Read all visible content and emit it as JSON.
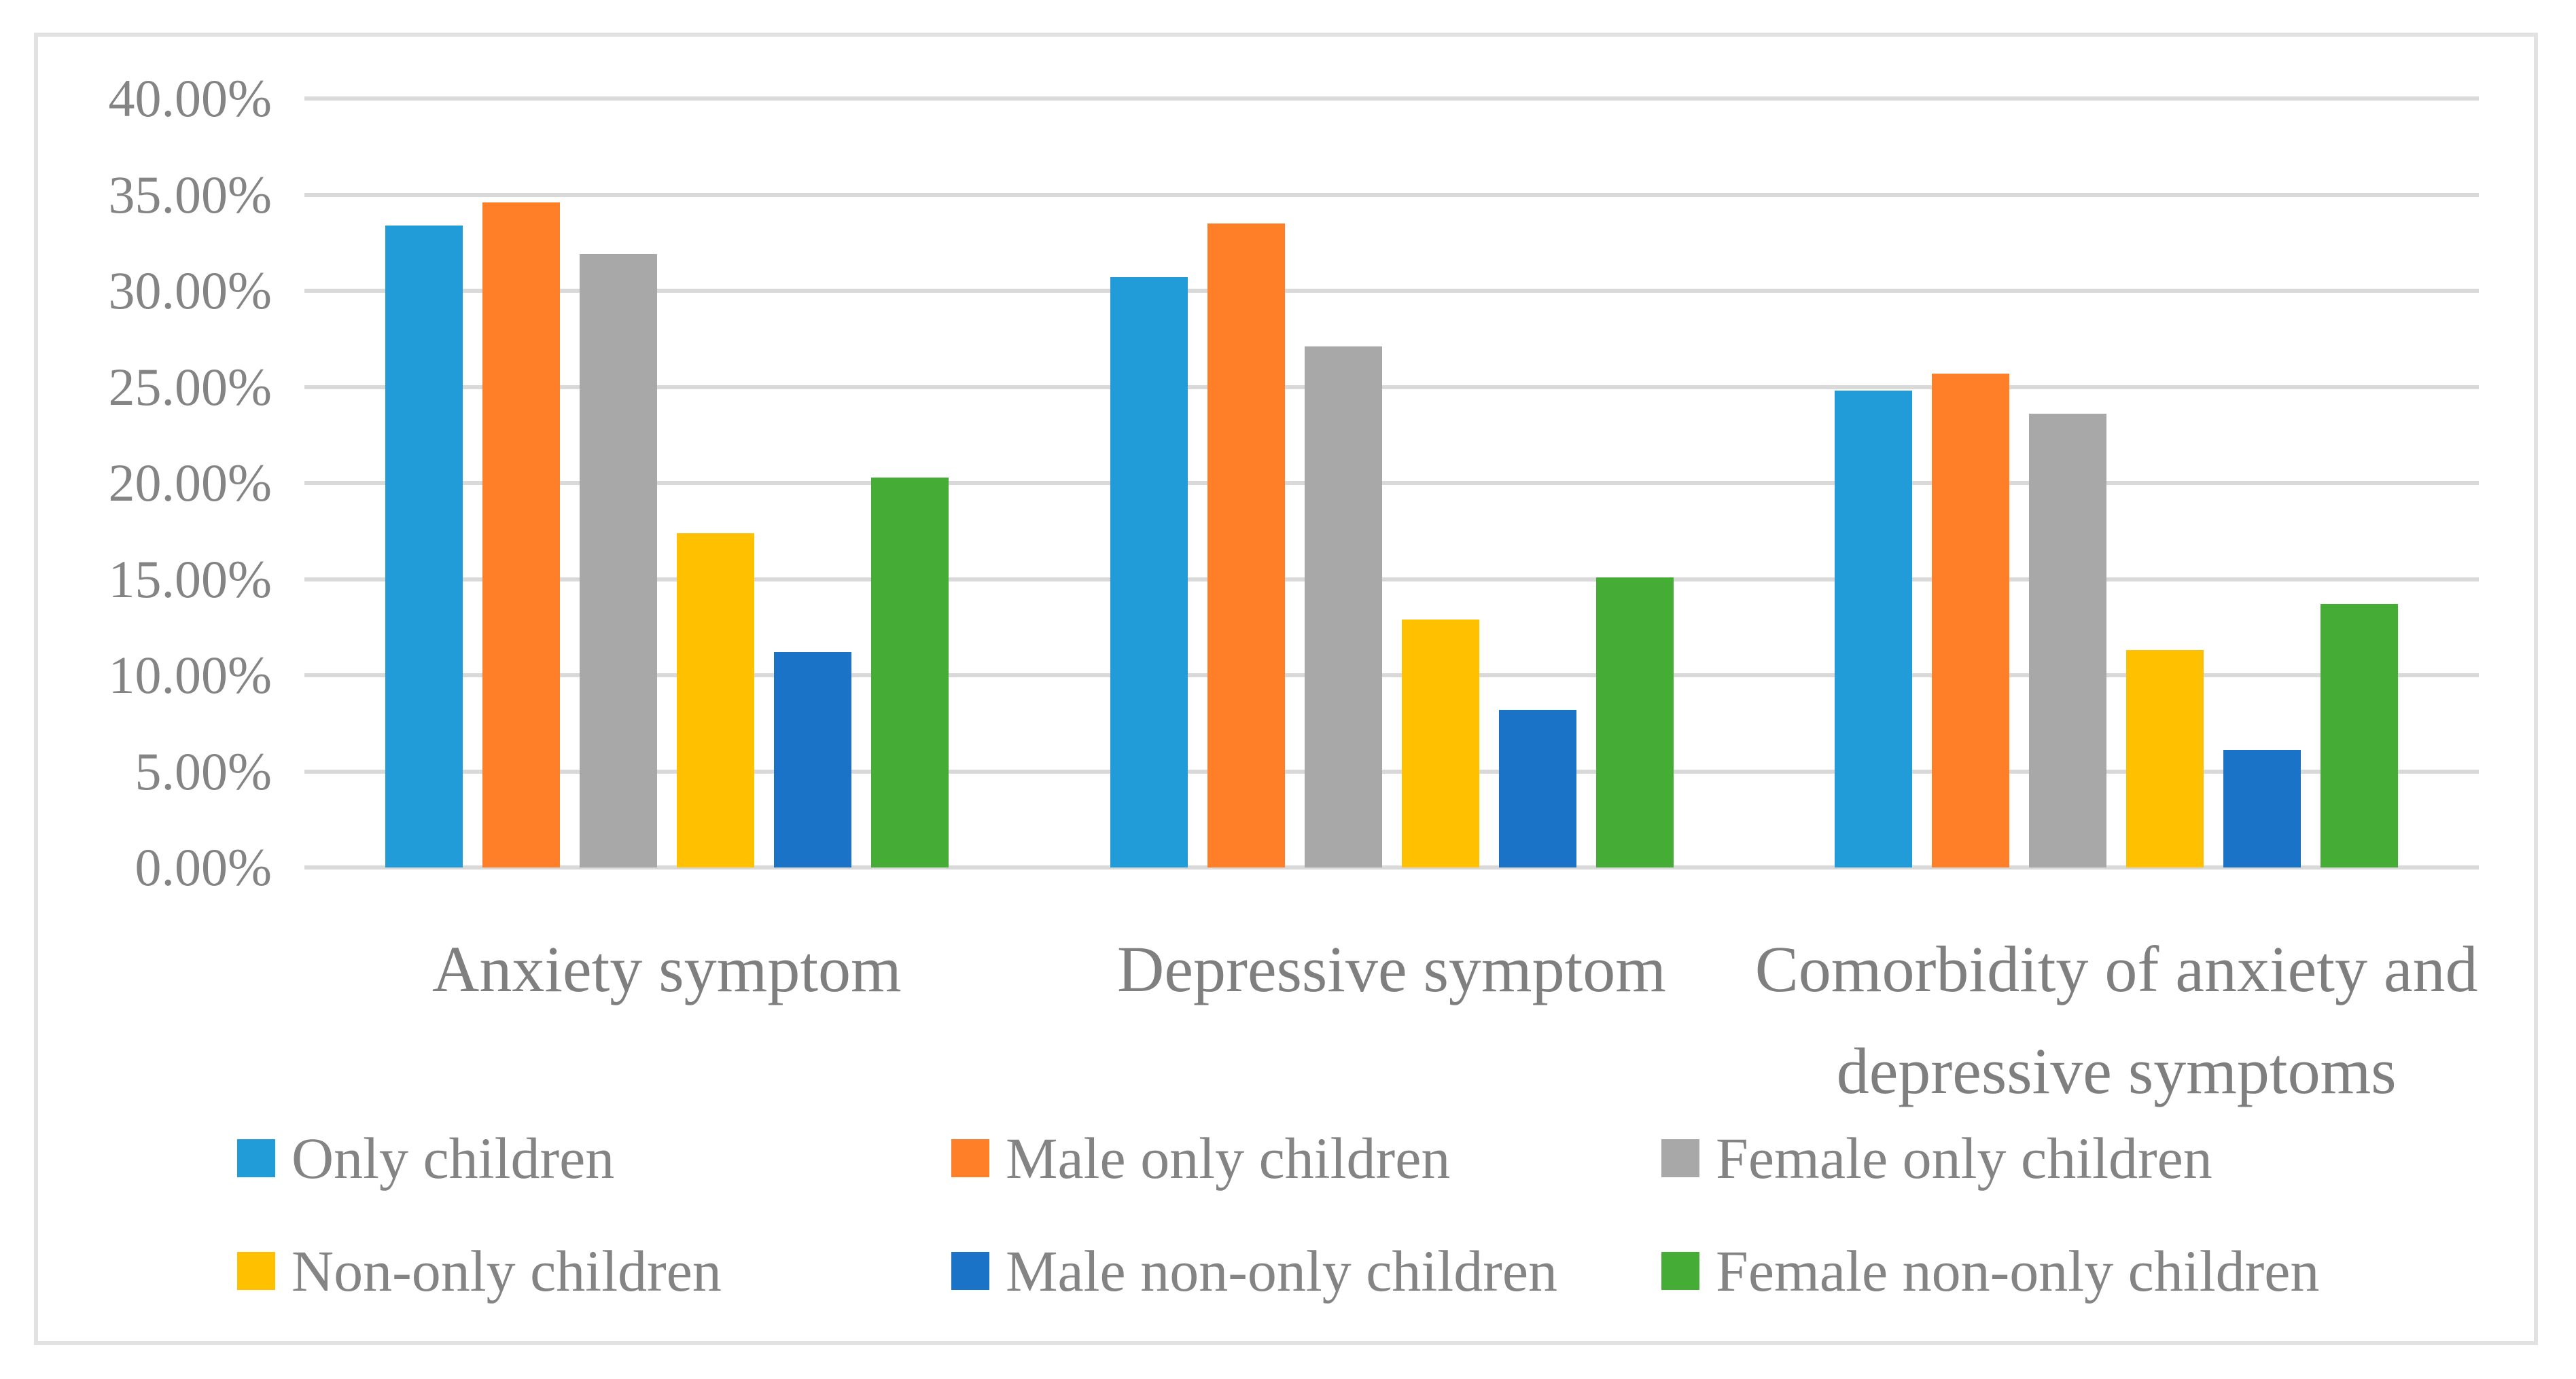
{
  "figure": {
    "background": "#FFFFFF",
    "border_color": "#E2E2E2",
    "grid_color": "#D9D9D9",
    "text_color": "#848484"
  },
  "chart_data": {
    "type": "bar",
    "title": "",
    "xlabel": "",
    "ylabel": "",
    "ylim": [
      0,
      40
    ],
    "y_tick_step": 5,
    "y_ticks": [
      "40.00%",
      "35.00%",
      "30.00%",
      "25.00%",
      "20.00%",
      "15.00%",
      "10.00%",
      "5.00%",
      "0.00%"
    ],
    "grid": true,
    "legend_position": "bottom",
    "categories": [
      "Anxiety symptom",
      "Depressive symptom",
      "Comorbidity of anxiety and depressive symptoms"
    ],
    "series": [
      {
        "name": "Only children",
        "color": "#219CD8",
        "values": [
          33.4,
          30.7,
          24.8
        ]
      },
      {
        "name": "Male only children",
        "color": "#FF7E28",
        "values": [
          34.6,
          33.5,
          25.7
        ]
      },
      {
        "name": "Female only children",
        "color": "#A8A8A8",
        "values": [
          31.9,
          27.1,
          23.6
        ]
      },
      {
        "name": "Non-only children",
        "color": "#FFC000",
        "values": [
          17.4,
          12.9,
          11.3
        ]
      },
      {
        "name": "Male non-only children",
        "color": "#1B73C8",
        "values": [
          11.2,
          8.2,
          6.1
        ]
      },
      {
        "name": "Female non-only children",
        "color": "#45AC35",
        "values": [
          20.3,
          15.1,
          13.7
        ]
      }
    ]
  }
}
